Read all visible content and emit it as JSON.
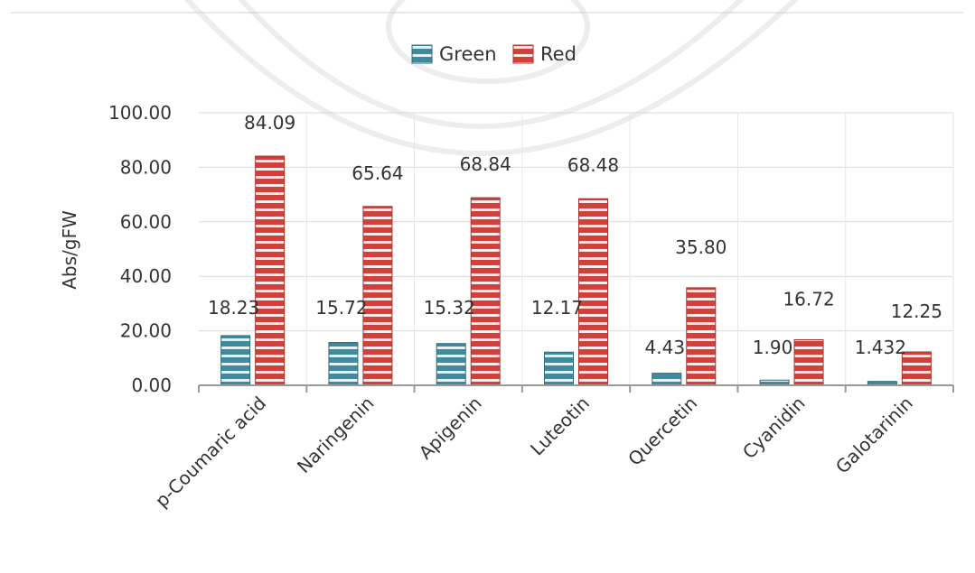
{
  "chart_data": {
    "type": "bar",
    "categories": [
      "p-Coumaric acid",
      "Naringenin",
      "Apigenin",
      "Luteotin",
      "Quercetin",
      "Cyanidin",
      "Galotarinin"
    ],
    "series": [
      {
        "name": "Green",
        "color": "#2e6f8e",
        "values": [
          18.23,
          15.72,
          15.32,
          12.17,
          4.43,
          1.9,
          1.432
        ],
        "labels": [
          "18.23",
          "15.72",
          "15.32",
          "12.17",
          "4.43",
          "1.90",
          "1.432"
        ]
      },
      {
        "name": "Red",
        "color": "#c0392b",
        "values": [
          84.09,
          65.64,
          68.84,
          68.48,
          35.8,
          16.72,
          12.25
        ],
        "labels": [
          "84.09",
          "65.64",
          "68.84",
          "68.48",
          "35.80",
          "16.72",
          "12.25"
        ]
      }
    ],
    "title": "",
    "xlabel": "",
    "ylabel": "Abs/gFW",
    "ylim": [
      0,
      100
    ],
    "yticks": [
      "0.00",
      "20.00",
      "40.00",
      "60.00",
      "80.00",
      "100.00"
    ],
    "grid": true,
    "legend_position": "top-center"
  }
}
